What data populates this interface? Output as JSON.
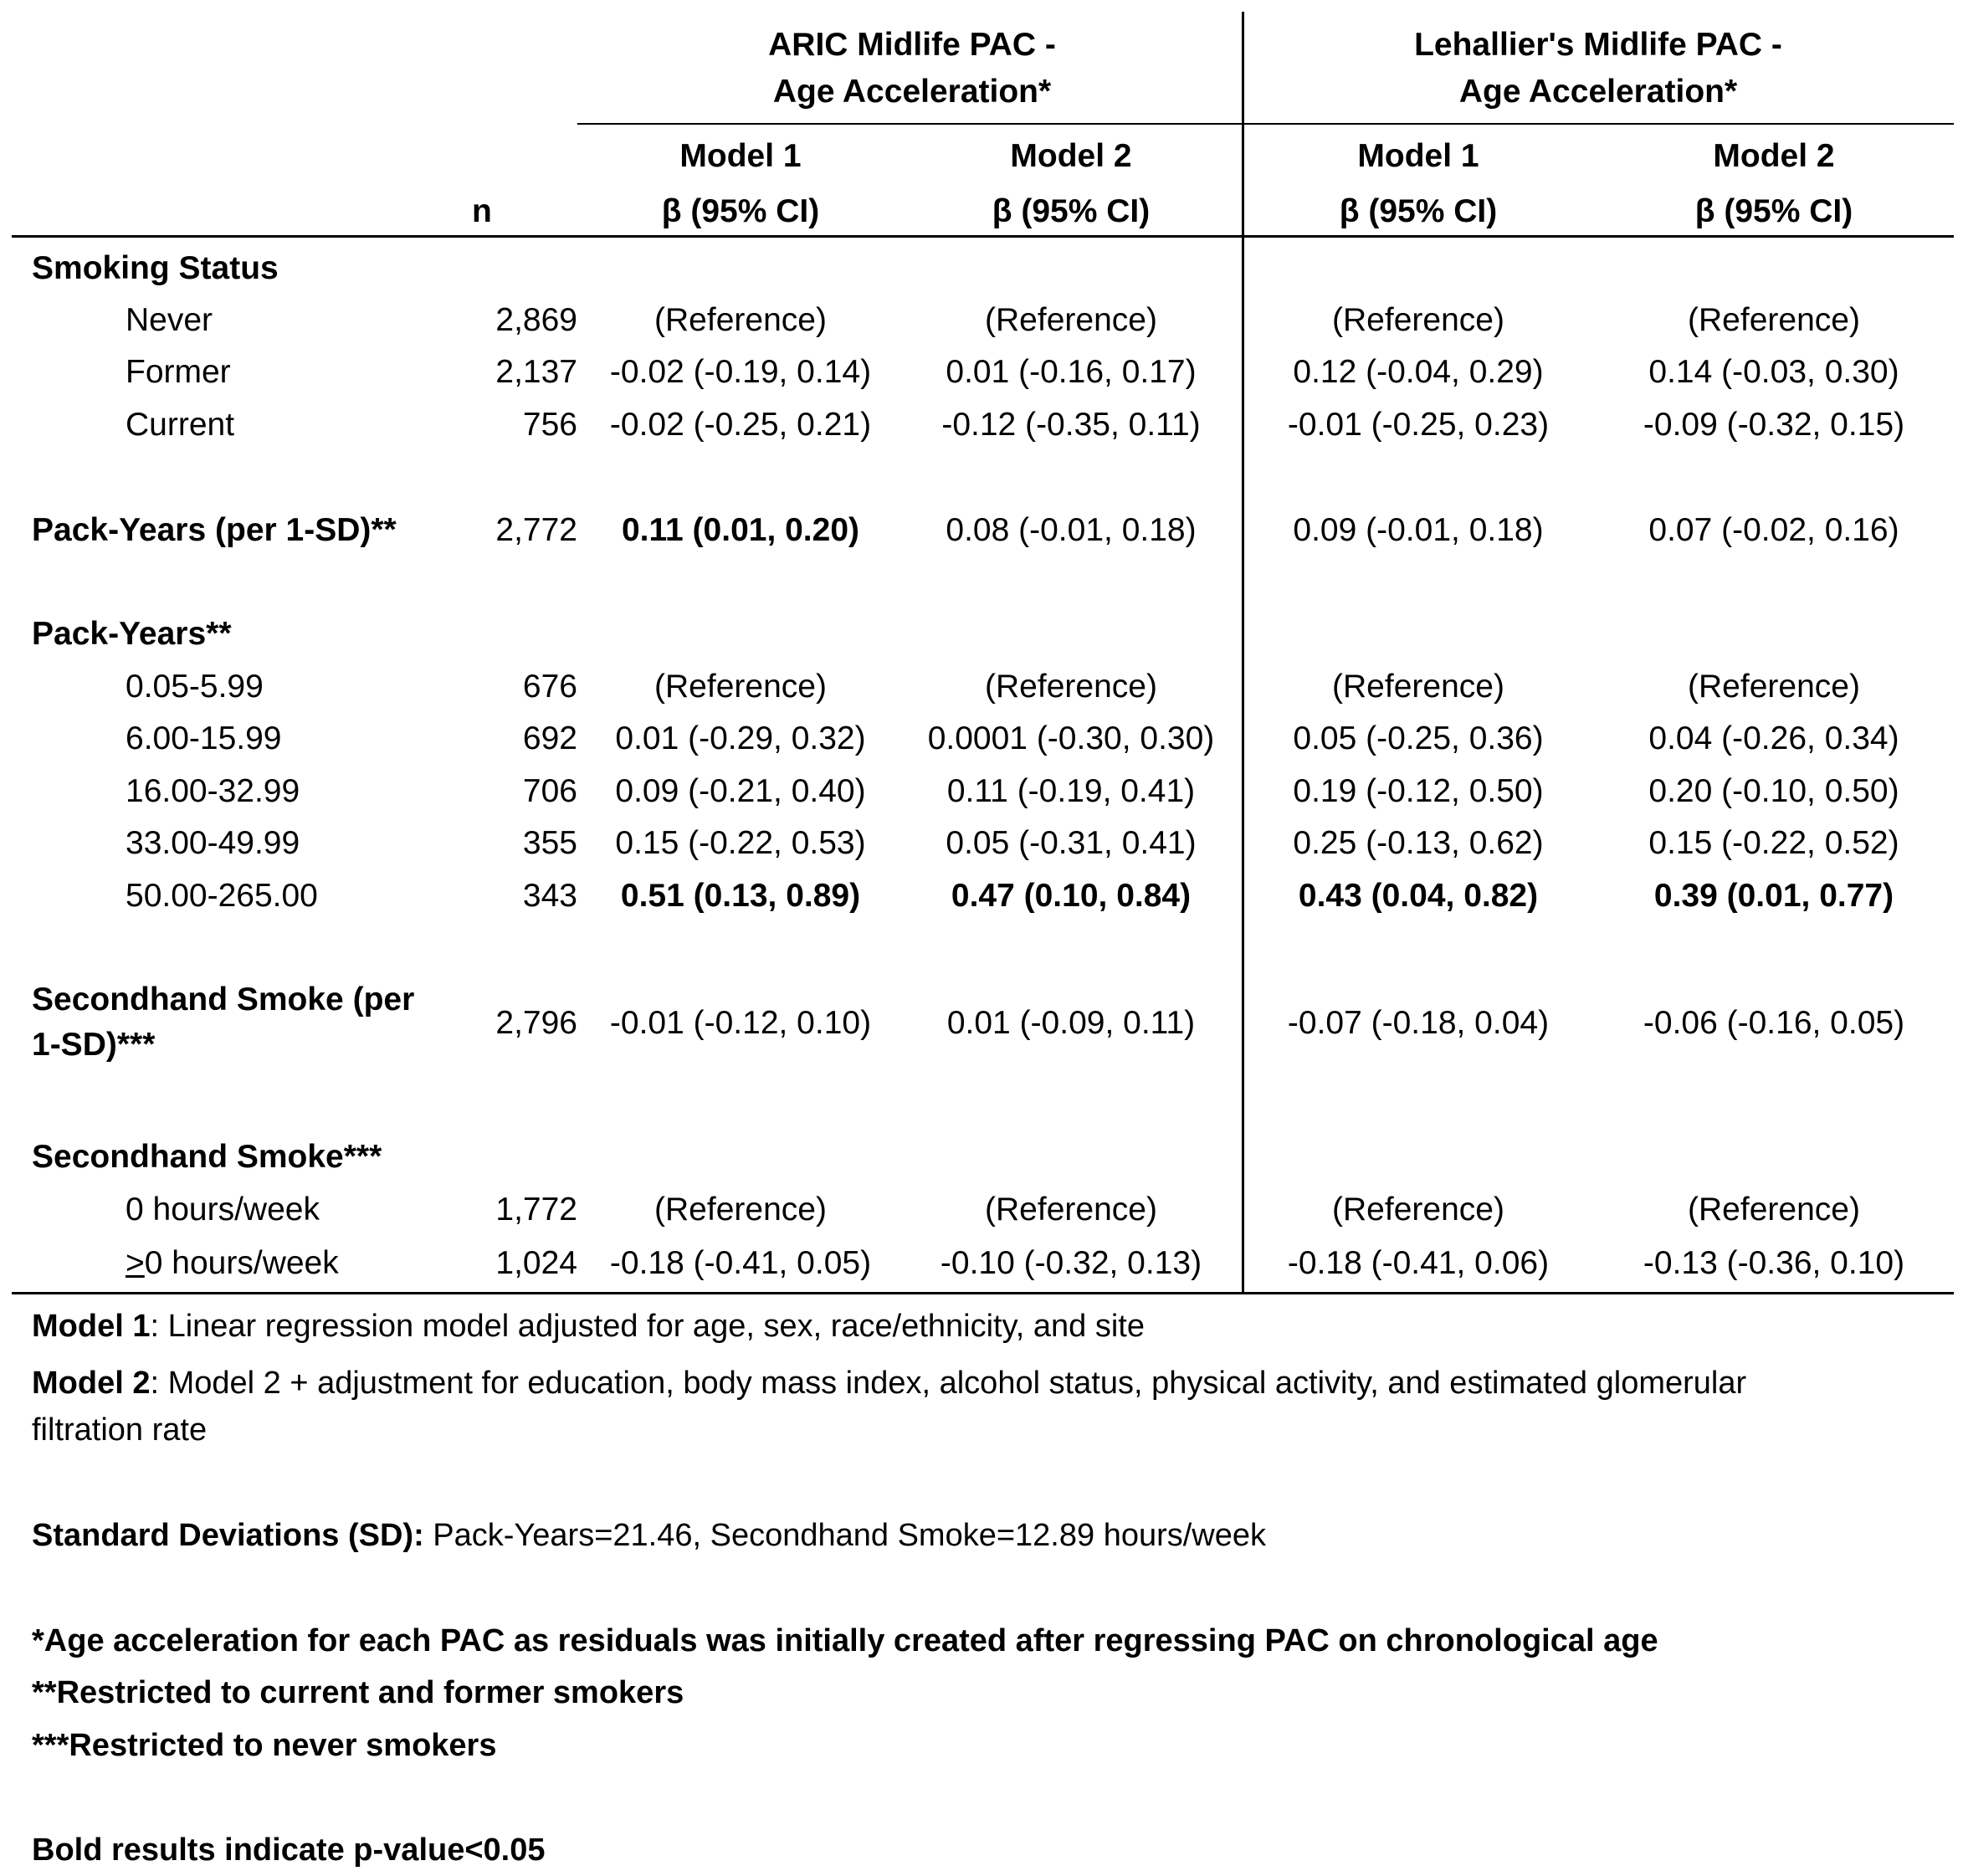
{
  "header": {
    "group_aric": "ARIC Midlife PAC - Age Acceleration*",
    "group_lehallier": "Lehallier's Midlife PAC - Age Acceleration*",
    "n_label": "n",
    "model1": "Model 1",
    "model2": "Model 2",
    "beta_ci": "β (95% CI)"
  },
  "sections": {
    "smoking_status": {
      "title": "Smoking Status",
      "rows": [
        {
          "label": "Never",
          "n": "2,869",
          "a1": "(Reference)",
          "a2": "(Reference)",
          "l1": "(Reference)",
          "l2": "(Reference)"
        },
        {
          "label": "Former",
          "n": "2,137",
          "a1": "-0.02 (-0.19, 0.14)",
          "a2": "0.01 (-0.16, 0.17)",
          "l1": "0.12 (-0.04, 0.29)",
          "l2": "0.14 (-0.03, 0.30)"
        },
        {
          "label": "Current",
          "n": "756",
          "a1": "-0.02 (-0.25, 0.21)",
          "a2": "-0.12 (-0.35, 0.11)",
          "l1": "-0.01 (-0.25, 0.23)",
          "l2": "-0.09 (-0.32, 0.15)"
        }
      ]
    },
    "pack_years_sd": {
      "title": "Pack-Years (per 1-SD)**",
      "n": "2,772",
      "a1": "0.11 (0.01, 0.20)",
      "a2": "0.08 (-0.01, 0.18)",
      "l1": "0.09 (-0.01, 0.18)",
      "l2": "0.07 (-0.02, 0.16)"
    },
    "pack_years": {
      "title": "Pack-Years**",
      "rows": [
        {
          "label": "0.05-5.99",
          "n": "676",
          "a1": "(Reference)",
          "a2": "(Reference)",
          "l1": "(Reference)",
          "l2": "(Reference)"
        },
        {
          "label": "6.00-15.99",
          "n": "692",
          "a1": "0.01 (-0.29, 0.32)",
          "a2": "0.0001 (-0.30, 0.30)",
          "l1": "0.05 (-0.25, 0.36)",
          "l2": "0.04 (-0.26, 0.34)"
        },
        {
          "label": "16.00-32.99",
          "n": "706",
          "a1": "0.09 (-0.21, 0.40)",
          "a2": "0.11 (-0.19, 0.41)",
          "l1": "0.19 (-0.12, 0.50)",
          "l2": "0.20 (-0.10, 0.50)"
        },
        {
          "label": "33.00-49.99",
          "n": "355",
          "a1": "0.15 (-0.22, 0.53)",
          "a2": "0.05 (-0.31, 0.41)",
          "l1": "0.25 (-0.13, 0.62)",
          "l2": "0.15 (-0.22, 0.52)"
        },
        {
          "label": "50.00-265.00",
          "n": "343",
          "a1": "0.51 (0.13, 0.89)",
          "a2": "0.47 (0.10, 0.84)",
          "l1": "0.43 (0.04, 0.82)",
          "l2": "0.39 (0.01, 0.77)"
        }
      ]
    },
    "secondhand_sd": {
      "title_line1": "Secondhand Smoke (per",
      "title_line2": "1-SD)***",
      "n": "2,796",
      "a1": "-0.01 (-0.12, 0.10)",
      "a2": "0.01 (-0.09, 0.11)",
      "l1": "-0.07 (-0.18, 0.04)",
      "l2": "-0.06 (-0.16, 0.05)"
    },
    "secondhand": {
      "title": "Secondhand Smoke***",
      "rows": [
        {
          "label": "0 hours/week",
          "n": "1,772",
          "a1": "(Reference)",
          "a2": "(Reference)",
          "l1": "(Reference)",
          "l2": "(Reference)"
        },
        {
          "label_prefix": ">",
          "label_rest": "0 hours/week",
          "n": "1,024",
          "a1": "-0.18 (-0.41, 0.05)",
          "a2": "-0.10 (-0.32, 0.13)",
          "l1": "-0.18 (-0.41, 0.06)",
          "l2": "-0.13 (-0.36, 0.10)"
        }
      ]
    }
  },
  "notes": {
    "model1_label": "Model 1",
    "model1_text": ": Linear regression model adjusted for age, sex, race/ethnicity, and site",
    "model2_label": "Model 2",
    "model2_text_line1": ": Model 2 + adjustment for education, body mass index, alcohol status, physical activity, and estimated glomerular",
    "model2_text_line2": "filtration rate",
    "sd_label": "Standard Deviations (SD):",
    "sd_text": " Pack-Years=21.46, Secondhand Smoke=12.89 hours/week",
    "footnote1": "*Age acceleration for each PAC as residuals was initially created after regressing PAC on chronological age",
    "footnote2": "**Restricted to current and former smokers",
    "footnote3": "***Restricted to never smokers",
    "bold_note": "Bold results indicate p-value<0.05"
  }
}
